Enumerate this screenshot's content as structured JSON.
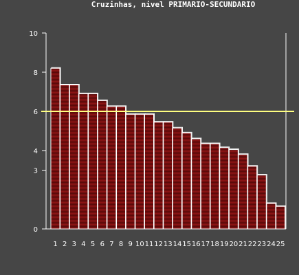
{
  "chart_data": {
    "type": "bar",
    "title": "Cruzinhas, nivel PRIMARIO-SECUNDARIO",
    "xlabel": "",
    "ylabel": "",
    "categories": [
      "1",
      "2",
      "3",
      "4",
      "5",
      "6",
      "7",
      "8",
      "9",
      "10",
      "11",
      "12",
      "13",
      "14",
      "15",
      "16",
      "17",
      "18",
      "19",
      "20",
      "21",
      "22",
      "23",
      "24",
      "25"
    ],
    "values": [
      8.2,
      7.35,
      7.35,
      6.9,
      6.9,
      6.55,
      6.25,
      6.25,
      5.85,
      5.85,
      5.85,
      5.45,
      5.45,
      5.15,
      4.9,
      4.6,
      4.35,
      4.35,
      4.15,
      4.05,
      3.8,
      3.2,
      2.75,
      1.3,
      1.15
    ],
    "yticks": [
      0,
      3,
      4,
      6,
      8,
      10
    ],
    "ylim": [
      0,
      10
    ],
    "reference_line": {
      "value": 6.0,
      "color": "#ffff80"
    },
    "grid": false,
    "colors": {
      "background": "#464646",
      "bar_fill": "#8c1414",
      "bar_stripe": "#5a0a0a",
      "bar_outline": "#ffffff",
      "axis": "#ffffff",
      "text": "#ffffff"
    }
  }
}
